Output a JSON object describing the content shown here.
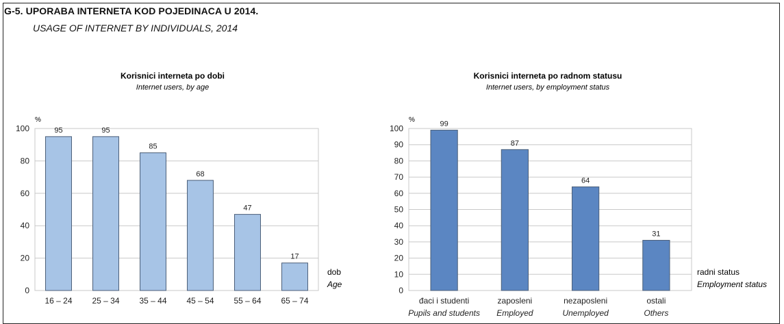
{
  "figure": {
    "title": "G-5. UPORABA INTERNETA KOD POJEDINACA U 2014.",
    "subtitle": "USAGE OF INTERNET BY INDIVIDUALS, 2014"
  },
  "colors": {
    "left_bar": "#a7c4e6",
    "right_bar": "#5b86c2",
    "bar_stroke": "#4b5e78",
    "grid": "#c8c8c8"
  },
  "chart_data": [
    {
      "type": "bar",
      "title": "Korisnici interneta po dobi",
      "subtitle": "Internet users, by age",
      "unit": "%",
      "xlabel": "dob",
      "xlabel_en": "Age",
      "categories": [
        "16 – 24",
        "25 – 34",
        "35 – 44",
        "45 – 54",
        "55 – 64",
        "65 – 74"
      ],
      "categories_en": [],
      "values": [
        95,
        95,
        85,
        68,
        47,
        17
      ],
      "ylim": [
        0,
        100
      ],
      "yticks": [
        0,
        20,
        40,
        60,
        80,
        100
      ],
      "grid": true,
      "legend": "none"
    },
    {
      "type": "bar",
      "title": "Korisnici interneta po radnom statusu",
      "subtitle": "Internet users, by employment status",
      "unit": "%",
      "xlabel": "radni status",
      "xlabel_en": "Employment status",
      "categories": [
        "đaci i studenti",
        "zaposleni",
        "nezaposleni",
        "ostali"
      ],
      "categories_en": [
        "Pupils and students",
        "Employed",
        "Unemployed",
        "Others"
      ],
      "values": [
        99,
        87,
        64,
        31
      ],
      "ylim": [
        0,
        100
      ],
      "yticks": [
        0,
        10,
        20,
        30,
        40,
        50,
        60,
        70,
        80,
        90,
        100
      ],
      "grid": true,
      "legend": "none"
    }
  ]
}
